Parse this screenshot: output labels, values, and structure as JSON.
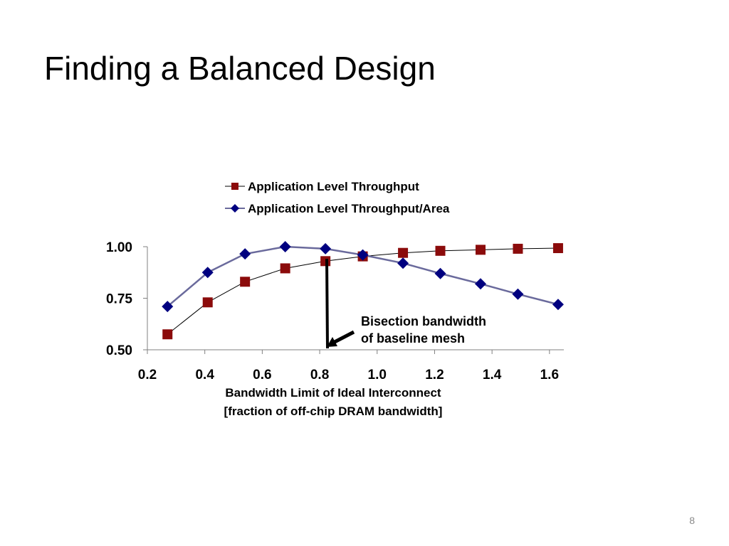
{
  "slide": {
    "title": "Finding a Balanced Design",
    "page_number": "8"
  },
  "colors": {
    "throughput": "#8b0b0b",
    "throughput_line": "#000000",
    "per_area": "#000080",
    "per_area_line": "#6a6a9c",
    "axis": "#808080"
  },
  "chart_data": {
    "type": "line",
    "xlabel": "Bandwidth Limit of Ideal Interconnect",
    "xlabel_line2": "[fraction of off-chip DRAM bandwidth]",
    "ylabel": "",
    "xlim": [
      0.2,
      1.65
    ],
    "ylim": [
      0.5,
      1.0
    ],
    "x_ticks": [
      "0.2",
      "0.4",
      "0.6",
      "0.8",
      "1.0",
      "1.2",
      "1.4",
      "1.6"
    ],
    "y_ticks": [
      "0.50",
      "0.75",
      "1.00"
    ],
    "grid": false,
    "legend_position": "top",
    "series": [
      {
        "name": "Application Level Throughput",
        "marker": "square",
        "x": [
          0.27,
          0.41,
          0.54,
          0.68,
          0.82,
          0.95,
          1.09,
          1.22,
          1.36,
          1.49,
          1.63
        ],
        "values": [
          0.575,
          0.73,
          0.83,
          0.895,
          0.93,
          0.953,
          0.97,
          0.98,
          0.985,
          0.99,
          0.993
        ]
      },
      {
        "name": "Application Level Throughput/Area",
        "marker": "diamond",
        "x": [
          0.27,
          0.41,
          0.54,
          0.68,
          0.82,
          0.95,
          1.09,
          1.22,
          1.36,
          1.49,
          1.63
        ],
        "values": [
          0.71,
          0.875,
          0.965,
          1.0,
          0.99,
          0.96,
          0.92,
          0.87,
          0.82,
          0.77,
          0.72
        ]
      }
    ],
    "annotations": [
      {
        "text": "Bisection bandwidth",
        "text_line2": "of baseline mesh",
        "x": 0.82
      }
    ]
  }
}
